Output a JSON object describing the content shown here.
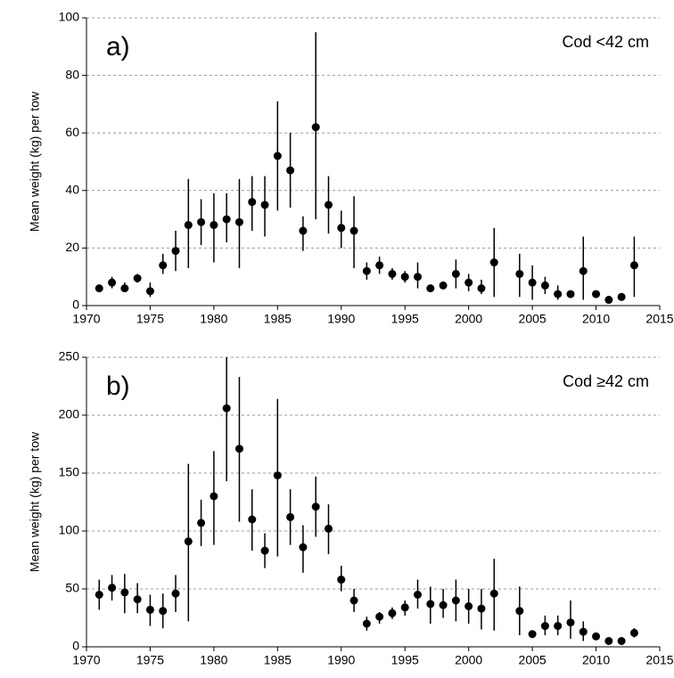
{
  "chart_data": [
    {
      "type": "scatter",
      "panel_label": "a)",
      "annotation": "Cod <42 cm",
      "y_label": "Mean weight (kg) per tow",
      "color": "#000000",
      "x": [
        1971,
        1972,
        1973,
        1974,
        1975,
        1976,
        1977,
        1978,
        1979,
        1980,
        1981,
        1982,
        1983,
        1984,
        1985,
        1986,
        1987,
        1988,
        1989,
        1990,
        1991,
        1992,
        1993,
        1994,
        1995,
        1996,
        1997,
        1998,
        1999,
        2000,
        2001,
        2002,
        2004,
        2005,
        2006,
        2007,
        2008,
        2009,
        2010,
        2011,
        2012,
        2013
      ],
      "values": [
        6,
        8,
        6,
        9.5,
        5,
        14,
        19,
        28,
        29,
        28,
        30,
        29,
        36,
        35,
        52,
        47,
        26,
        62,
        35,
        27,
        26,
        12,
        14,
        11,
        10,
        10,
        6,
        7,
        11,
        8,
        6,
        15,
        11,
        8,
        7,
        4,
        4,
        12,
        4,
        2,
        3,
        14
      ],
      "lower": [
        5,
        6,
        5,
        8,
        3,
        11,
        12,
        13,
        21,
        15,
        22,
        13,
        26,
        24,
        33,
        34,
        19,
        30,
        25,
        20,
        13,
        9,
        11,
        9,
        8,
        6,
        5,
        6,
        6,
        5,
        4,
        3,
        3,
        2,
        4,
        2,
        3,
        2,
        3,
        2,
        2,
        3
      ],
      "upper": [
        7,
        10,
        8,
        11,
        8,
        18,
        26,
        44,
        37,
        39,
        39,
        44,
        45,
        45,
        71,
        60,
        31,
        95,
        45,
        33,
        38,
        15,
        17,
        13,
        12,
        15,
        7,
        8,
        16,
        11,
        9,
        27,
        18,
        14,
        10,
        7,
        5,
        24,
        5,
        3,
        3,
        24
      ],
      "xlim": [
        1970,
        2015
      ],
      "xticks": [
        1970,
        1975,
        1980,
        1985,
        1990,
        1995,
        2000,
        2005,
        2010,
        2015
      ],
      "ylim": [
        0,
        100
      ],
      "yticks": [
        0,
        20,
        40,
        60,
        80,
        100
      ],
      "grid": true
    },
    {
      "type": "scatter",
      "panel_label": "b)",
      "annotation": "Cod ≥42 cm",
      "y_label": "Mean weight (kg) per tow",
      "color": "#000000",
      "x": [
        1971,
        1972,
        1973,
        1974,
        1975,
        1976,
        1977,
        1978,
        1979,
        1980,
        1981,
        1982,
        1983,
        1984,
        1985,
        1986,
        1987,
        1988,
        1989,
        1990,
        1991,
        1992,
        1993,
        1994,
        1995,
        1996,
        1997,
        1998,
        1999,
        2000,
        2001,
        2002,
        2004,
        2005,
        2006,
        2007,
        2008,
        2009,
        2010,
        2011,
        2012,
        2013
      ],
      "values": [
        45,
        51,
        47,
        41,
        32,
        31,
        46,
        91,
        107,
        130,
        206,
        171,
        110,
        83,
        148,
        112,
        86,
        121,
        102,
        58,
        40,
        20,
        26,
        29,
        34,
        45,
        37,
        36,
        40,
        35,
        33,
        46,
        31,
        11,
        18,
        18,
        21,
        13,
        9,
        5,
        5,
        12
      ],
      "lower": [
        32,
        40,
        29,
        29,
        18,
        16,
        30,
        22,
        87,
        88,
        143,
        108,
        83,
        68,
        78,
        88,
        64,
        95,
        80,
        48,
        30,
        14,
        20,
        24,
        27,
        33,
        20,
        25,
        22,
        20,
        15,
        14,
        10,
        9,
        10,
        10,
        7,
        5,
        6,
        3,
        3,
        8
      ],
      "upper": [
        58,
        62,
        63,
        55,
        45,
        46,
        62,
        158,
        127,
        169,
        250,
        233,
        136,
        98,
        214,
        136,
        105,
        147,
        123,
        70,
        50,
        26,
        30,
        34,
        40,
        58,
        52,
        50,
        58,
        50,
        50,
        76,
        52,
        13,
        27,
        27,
        40,
        22,
        12,
        7,
        7,
        16
      ],
      "xlim": [
        1970,
        2015
      ],
      "xticks": [
        1970,
        1975,
        1980,
        1985,
        1990,
        1995,
        2000,
        2005,
        2010,
        2015
      ],
      "ylim": [
        0,
        250
      ],
      "yticks": [
        0,
        50,
        100,
        150,
        200,
        250
      ],
      "grid": true
    }
  ]
}
